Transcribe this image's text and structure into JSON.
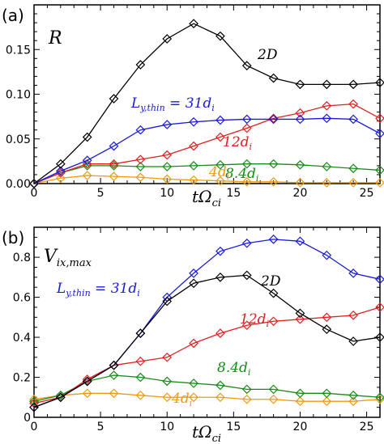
{
  "chart_data": [
    {
      "type": "line",
      "panel_label": "(a)",
      "title": "R",
      "xlabel": "tΩ",
      "xlabel_sub": "ci",
      "ylabel": "",
      "xlim": [
        0,
        26
      ],
      "ylim": [
        0,
        0.2
      ],
      "x_ticks": [
        0,
        5,
        10,
        15,
        20,
        25
      ],
      "y_ticks": [
        0,
        0.05,
        0.1,
        0.15
      ],
      "y_tick_labels": [
        "0.00",
        "0.05",
        "0.10",
        "0.15"
      ],
      "grid": false,
      "x": [
        0,
        2,
        4,
        6,
        8,
        10,
        12,
        14,
        16,
        18,
        20,
        22,
        24,
        26
      ],
      "series": [
        {
          "name": "2D",
          "color": "#000000",
          "values": [
            0,
            0.022,
            0.052,
            0.095,
            0.133,
            0.162,
            0.179,
            0.165,
            0.132,
            0.118,
            0.111,
            0.111,
            0.111,
            0.113
          ]
        },
        {
          "name": "L_y,thin = 31d_i",
          "color": "#1a1adb",
          "values": [
            0,
            0.014,
            0.026,
            0.042,
            0.06,
            0.066,
            0.069,
            0.071,
            0.072,
            0.072,
            0.072,
            0.073,
            0.072,
            0.056
          ]
        },
        {
          "name": "12d_i",
          "color": "#e02020",
          "values": [
            0,
            0.012,
            0.022,
            0.022,
            0.027,
            0.032,
            0.042,
            0.052,
            0.062,
            0.073,
            0.079,
            0.087,
            0.089,
            0.073
          ]
        },
        {
          "name": "8.4d_i",
          "color": "#168c16",
          "values": [
            0,
            0.012,
            0.02,
            0.02,
            0.019,
            0.019,
            0.02,
            0.021,
            0.022,
            0.022,
            0.021,
            0.019,
            0.017,
            0.015
          ]
        },
        {
          "name": "4d_i",
          "color": "#f09a10",
          "values": [
            0,
            0.006,
            0.009,
            0.008,
            0.007,
            0.005,
            0.004,
            0.003,
            0.002,
            0.002,
            0.001,
            0.001,
            0.001,
            0.001
          ]
        }
      ],
      "annotations": [
        {
          "text": "2D",
          "sub": "",
          "color": "#000000"
        },
        {
          "text": "L",
          "sub": "y,thin",
          "rest": " = 31d",
          "rest_sub": "i",
          "color": "#1a1adb"
        },
        {
          "text": "12d",
          "sub": "i",
          "color": "#e02020"
        },
        {
          "text": "8.4d",
          "sub": "i",
          "color": "#168c16"
        },
        {
          "text": "4d",
          "sub": "i",
          "color": "#f09a10"
        }
      ]
    },
    {
      "type": "line",
      "panel_label": "(b)",
      "title": "V",
      "title_sub": "ix,max",
      "xlabel": "tΩ",
      "xlabel_sub": "ci",
      "ylabel": "",
      "xlim": [
        0,
        26
      ],
      "ylim": [
        0,
        0.95
      ],
      "x_ticks": [
        0,
        5,
        10,
        15,
        20,
        25
      ],
      "y_ticks": [
        0,
        0.2,
        0.4,
        0.6,
        0.8
      ],
      "y_tick_labels": [
        "0",
        "0.2",
        "0.4",
        "0.6",
        "0.8"
      ],
      "grid": false,
      "x": [
        0,
        2,
        4,
        6,
        8,
        10,
        12,
        14,
        16,
        18,
        20,
        22,
        24,
        26
      ],
      "series": [
        {
          "name": "2D",
          "color": "#000000",
          "values": [
            0.05,
            0.1,
            0.18,
            0.26,
            0.42,
            0.58,
            0.67,
            0.7,
            0.71,
            0.62,
            0.52,
            0.44,
            0.38,
            0.4
          ]
        },
        {
          "name": "L_y,thin = 31d_i",
          "color": "#1a1adb",
          "values": [
            0.05,
            0.1,
            0.18,
            0.26,
            0.42,
            0.6,
            0.72,
            0.83,
            0.87,
            0.89,
            0.88,
            0.81,
            0.72,
            0.69
          ]
        },
        {
          "name": "12d_i",
          "color": "#e02020",
          "values": [
            0.07,
            0.1,
            0.19,
            0.26,
            0.28,
            0.3,
            0.37,
            0.42,
            0.46,
            0.48,
            0.49,
            0.5,
            0.51,
            0.55
          ]
        },
        {
          "name": "8.4d_i",
          "color": "#168c16",
          "values": [
            0.08,
            0.11,
            0.18,
            0.21,
            0.2,
            0.18,
            0.17,
            0.16,
            0.14,
            0.14,
            0.12,
            0.12,
            0.11,
            0.1
          ]
        },
        {
          "name": "4d_i",
          "color": "#f09a10",
          "values": [
            0.09,
            0.11,
            0.12,
            0.12,
            0.11,
            0.1,
            0.1,
            0.1,
            0.09,
            0.09,
            0.08,
            0.08,
            0.08,
            0.09
          ]
        }
      ],
      "annotations": [
        {
          "text": "2D",
          "sub": "",
          "color": "#000000"
        },
        {
          "text": "L",
          "sub": "y,thin",
          "rest": " = 31d",
          "rest_sub": "i",
          "color": "#1a1adb"
        },
        {
          "text": "12d",
          "sub": "i",
          "color": "#e02020"
        },
        {
          "text": "8.4d",
          "sub": "i",
          "color": "#168c16"
        },
        {
          "text": "4d",
          "sub": "i",
          "color": "#f09a10"
        }
      ]
    }
  ]
}
